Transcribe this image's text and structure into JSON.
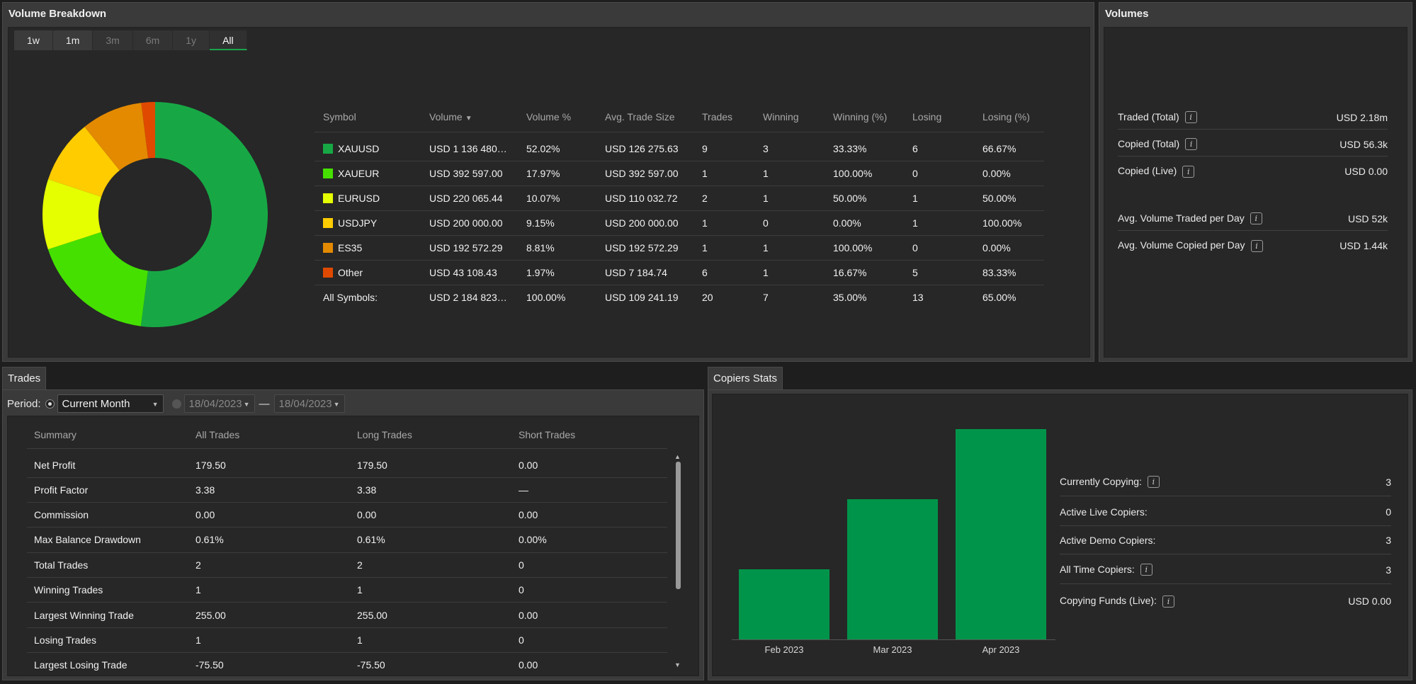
{
  "volume_breakdown": {
    "title": "Volume Breakdown",
    "periods": [
      {
        "label": "1w",
        "state": "enabled"
      },
      {
        "label": "1m",
        "state": "enabled"
      },
      {
        "label": "3m",
        "state": "disabled"
      },
      {
        "label": "6m",
        "state": "disabled"
      },
      {
        "label": "1y",
        "state": "disabled"
      },
      {
        "label": "All",
        "state": "active"
      }
    ],
    "columns": [
      "Symbol",
      "Volume",
      "Volume %",
      "Avg. Trade Size",
      "Trades",
      "Winning",
      "Winning (%)",
      "Losing",
      "Losing (%)"
    ],
    "sort_icon": "sort-down-icon",
    "rows": [
      {
        "symbol": "XAUUSD",
        "color": "#17a845",
        "volume": "USD 1 136 480…",
        "volume_pct": "52.02%",
        "avg": "USD 126 275.63",
        "trades": "9",
        "winning": "3",
        "winning_pct": "33.33%",
        "losing": "6",
        "losing_pct": "66.67%"
      },
      {
        "symbol": "XAUEUR",
        "color": "#45e000",
        "volume": "USD 392 597.00",
        "volume_pct": "17.97%",
        "avg": "USD 392 597.00",
        "trades": "1",
        "winning": "1",
        "winning_pct": "100.00%",
        "losing": "0",
        "losing_pct": "0.00%"
      },
      {
        "symbol": "EURUSD",
        "color": "#e6ff00",
        "volume": "USD 220 065.44",
        "volume_pct": "10.07%",
        "avg": "USD 110 032.72",
        "trades": "2",
        "winning": "1",
        "winning_pct": "50.00%",
        "losing": "1",
        "losing_pct": "50.00%"
      },
      {
        "symbol": "USDJPY",
        "color": "#ffcc00",
        "volume": "USD 200 000.00",
        "volume_pct": "9.15%",
        "avg": "USD 200 000.00",
        "trades": "1",
        "winning": "0",
        "winning_pct": "0.00%",
        "losing": "1",
        "losing_pct": "100.00%"
      },
      {
        "symbol": "ES35",
        "color": "#e38a00",
        "volume": "USD 192 572.29",
        "volume_pct": "8.81%",
        "avg": "USD 192 572.29",
        "trades": "1",
        "winning": "1",
        "winning_pct": "100.00%",
        "losing": "0",
        "losing_pct": "0.00%"
      },
      {
        "symbol": "Other",
        "color": "#e04a00",
        "volume": "USD 43 108.43",
        "volume_pct": "1.97%",
        "avg": "USD 7 184.74",
        "trades": "6",
        "winning": "1",
        "winning_pct": "16.67%",
        "losing": "5",
        "losing_pct": "83.33%"
      }
    ],
    "total": {
      "symbol": "All Symbols:",
      "volume": "USD 2 184 823…",
      "volume_pct": "100.00%",
      "avg": "USD 109 241.19",
      "trades": "20",
      "winning": "7",
      "winning_pct": "35.00%",
      "losing": "13",
      "losing_pct": "65.00%"
    }
  },
  "chart_data": [
    {
      "type": "pie",
      "donut": true,
      "categories": [
        "XAUUSD",
        "XAUEUR",
        "EURUSD",
        "USDJPY",
        "ES35",
        "Other"
      ],
      "values": [
        52.02,
        17.97,
        10.07,
        9.15,
        8.81,
        1.97
      ],
      "colors": [
        "#17a845",
        "#45e000",
        "#e6ff00",
        "#ffcc00",
        "#e38a00",
        "#e04a00"
      ]
    },
    {
      "type": "bar",
      "categories": [
        "Feb 2023",
        "Mar 2023",
        "Apr 2023"
      ],
      "values": [
        1,
        2,
        3
      ],
      "ylim": [
        0,
        3
      ],
      "color": "#00944a",
      "grid": false
    }
  ],
  "volumes": {
    "title": "Volumes",
    "items": [
      {
        "label": "Traded (Total)",
        "value": "USD 2.18m",
        "info": true
      },
      {
        "label": "Copied (Total)",
        "value": "USD 56.3k",
        "info": true
      },
      {
        "label": "Copied (Live)",
        "value": "USD 0.00",
        "info": true
      },
      {
        "label": "Avg. Volume Traded per Day",
        "value": "USD 52k",
        "info": true
      },
      {
        "label": "Avg. Volume Copied per Day",
        "value": "USD 1.44k",
        "info": true
      }
    ]
  },
  "trades": {
    "tab": "Trades",
    "period_label": "Period:",
    "period_value": "Current Month",
    "date_from": "18/04/2023",
    "date_sep": "—",
    "date_to": "18/04/2023",
    "columns": [
      "Summary",
      "All Trades",
      "Long Trades",
      "Short Trades"
    ],
    "rows": [
      [
        "Net Profit",
        "179.50",
        "179.50",
        "0.00"
      ],
      [
        "Profit Factor",
        "3.38",
        "3.38",
        "—"
      ],
      [
        "Commission",
        "0.00",
        "0.00",
        "0.00"
      ],
      [
        "Max Balance Drawdown",
        "0.61%",
        "0.61%",
        "0.00%"
      ],
      [
        "Total Trades",
        "2",
        "2",
        "0"
      ],
      [
        "Winning Trades",
        "1",
        "1",
        "0"
      ],
      [
        "Largest Winning Trade",
        "255.00",
        "255.00",
        "0.00"
      ],
      [
        "Losing Trades",
        "1",
        "1",
        "0"
      ],
      [
        "Largest Losing Trade",
        "-75.50",
        "-75.50",
        "0.00"
      ]
    ]
  },
  "copiers": {
    "tab": "Copiers Stats",
    "items": [
      {
        "label": "Currently Copying:",
        "value": "3",
        "info": true
      },
      {
        "label": "Active Live Copiers:",
        "value": "0",
        "info": false
      },
      {
        "label": "Active Demo Copiers:",
        "value": "3",
        "info": false
      },
      {
        "label": "All Time Copiers:",
        "value": "3",
        "info": true
      },
      {
        "label": "Copying Funds (Live):",
        "value": "USD 0.00",
        "info": true
      }
    ]
  }
}
